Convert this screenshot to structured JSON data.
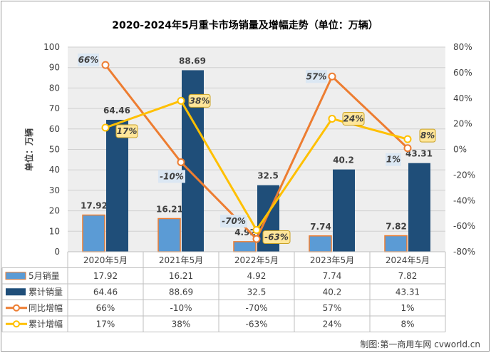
{
  "chart_data": {
    "type": "bar",
    "title": "2020-2024年5月重卡市场销量及增幅走势（单位：万辆）",
    "ylabel": "单位：万辆",
    "ylim": [
      0,
      100
    ],
    "y_ticks": [
      0,
      10,
      20,
      30,
      40,
      50,
      60,
      70,
      80,
      90,
      100
    ],
    "y2lim": [
      -80,
      80
    ],
    "y2_ticks": [
      "-80%",
      "-60%",
      "-40%",
      "-20%",
      "0%",
      "20%",
      "40%",
      "60%",
      "80%"
    ],
    "y2_values": [
      -80,
      -60,
      -40,
      -20,
      0,
      20,
      40,
      60,
      80
    ],
    "categories": [
      "2020年5月",
      "2021年5月",
      "2022年5月",
      "2023年5月",
      "2024年5月"
    ],
    "grid": true,
    "legend": "data-table-below",
    "series": [
      {
        "name": "5月销量",
        "kind": "bar",
        "axis": "left",
        "color": "#5b9bd5",
        "border": "#ed7d31",
        "values": [
          17.92,
          16.21,
          4.92,
          7.74,
          7.82
        ],
        "labels": [
          "17.92",
          "16.21",
          "4.92",
          "7.74",
          "7.82"
        ]
      },
      {
        "name": "累计销量",
        "kind": "bar",
        "axis": "left",
        "color": "#1f4e79",
        "values": [
          64.46,
          88.69,
          32.5,
          40.2,
          43.31
        ],
        "labels": [
          "64.46",
          "88.69",
          "32.5",
          "40.2",
          "43.31"
        ]
      },
      {
        "name": "同比增幅",
        "kind": "line",
        "axis": "right",
        "color": "#ed7d31",
        "values": [
          66,
          -10,
          -70,
          57,
          1
        ],
        "labels": [
          "66%",
          "-10%",
          "-70%",
          "57%",
          "1%"
        ]
      },
      {
        "name": "累计增幅",
        "kind": "line",
        "axis": "right",
        "color": "#ffc000",
        "values": [
          17,
          38,
          -63,
          24,
          8
        ],
        "labels": [
          "17%",
          "38%",
          "-63%",
          "24%",
          "8%"
        ]
      }
    ]
  },
  "footer": {
    "credit": "制图:第一商用车网 cvworld.cn"
  }
}
